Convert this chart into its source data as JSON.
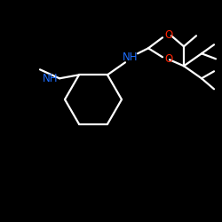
{
  "background_color": "#000000",
  "bond_color": "#ffffff",
  "N_color": "#1e6eff",
  "O_color": "#ff2200",
  "NH_label_1": "NH",
  "NH_label_2": "NH",
  "O_label_1": "O",
  "O_label_2": "O",
  "figsize": [
    2.5,
    2.5
  ],
  "dpi": 100
}
